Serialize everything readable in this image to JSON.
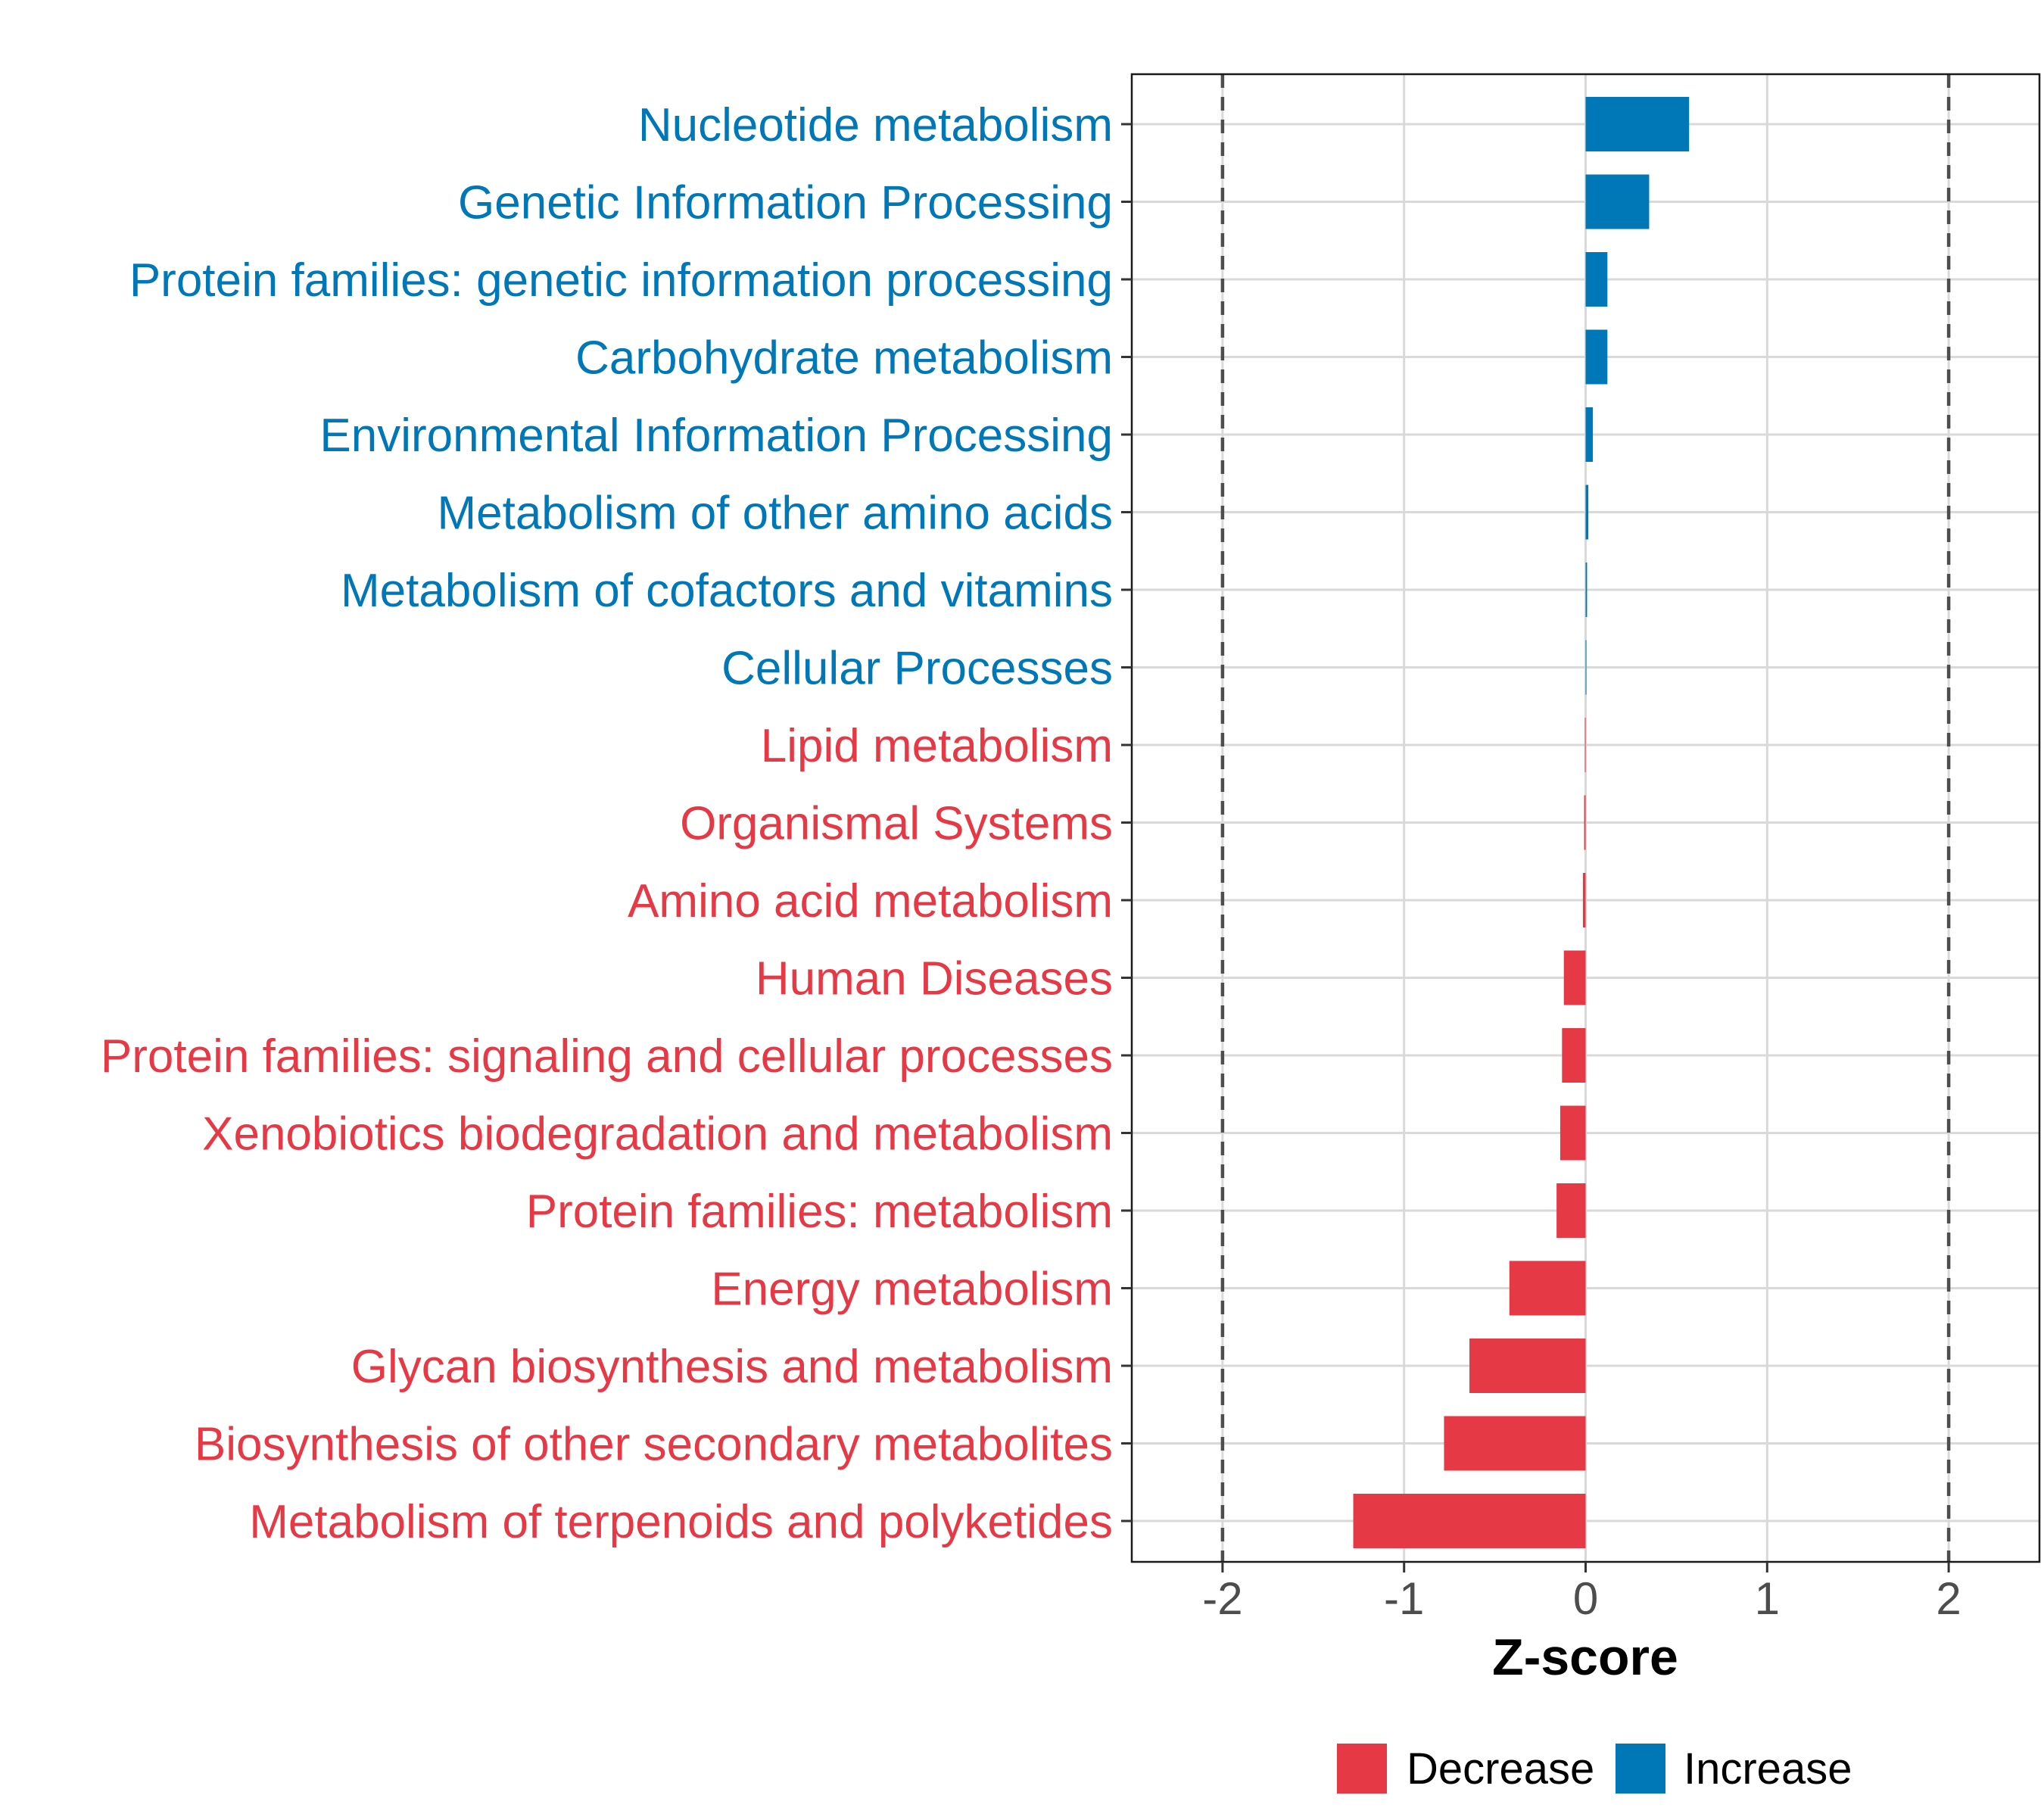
{
  "chart_data": {
    "type": "bar",
    "orientation": "horizontal",
    "xlabel": "Z-score",
    "xlim": [
      -2.5,
      2.5
    ],
    "xticks": [
      -2,
      -1,
      0,
      1,
      2
    ],
    "xtick_labels": [
      "-2",
      "-1",
      "0",
      "1",
      "2"
    ],
    "reference_lines": [
      -2,
      2
    ],
    "grid": true,
    "legend_position": "bottom",
    "colors": {
      "Decrease": "#e63946",
      "Increase": "#0077b6",
      "reference_line": "#4d4d4d",
      "grid": "#d9d9d9"
    },
    "categories": [
      "Nucleotide metabolism",
      "Genetic Information Processing",
      "Protein families: genetic information processing",
      "Carbohydrate metabolism",
      "Environmental Information Processing",
      "Metabolism of other amino acids",
      "Metabolism of cofactors and vitamins",
      "Cellular Processes",
      "Lipid metabolism",
      "Organismal Systems",
      "Amino acid metabolism",
      "Human Diseases",
      "Protein families: signaling and cellular processes",
      "Xenobiotics biodegradation and metabolism",
      "Protein families: metabolism",
      "Energy metabolism",
      "Glycan biosynthesis and metabolism",
      "Biosynthesis of other secondary metabolites",
      "Metabolism of terpenoids and polyketides"
    ],
    "values": [
      0.57,
      0.35,
      0.12,
      0.12,
      0.04,
      0.015,
      0.008,
      0.004,
      -0.004,
      -0.008,
      -0.015,
      -0.12,
      -0.13,
      -0.14,
      -0.16,
      -0.42,
      -0.64,
      -0.78,
      -1.28
    ],
    "groups": [
      "Increase",
      "Increase",
      "Increase",
      "Increase",
      "Increase",
      "Increase",
      "Increase",
      "Increase",
      "Decrease",
      "Decrease",
      "Decrease",
      "Decrease",
      "Decrease",
      "Decrease",
      "Decrease",
      "Decrease",
      "Decrease",
      "Decrease",
      "Decrease"
    ],
    "legend": [
      {
        "name": "Decrease"
      },
      {
        "name": "Increase"
      }
    ]
  }
}
